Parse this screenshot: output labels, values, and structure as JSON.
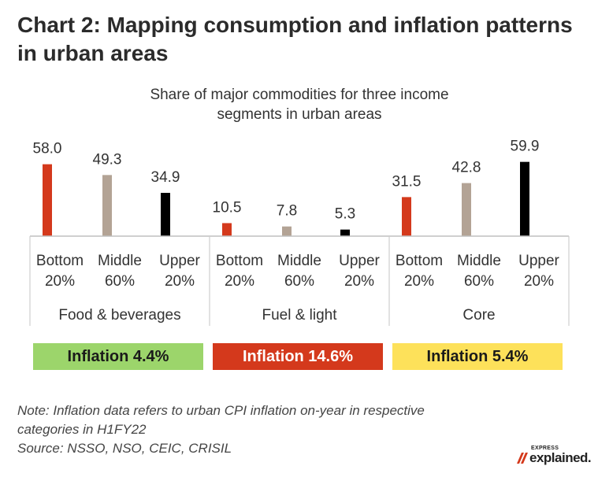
{
  "title": "Chart 2: Mapping consumption and inflation patterns in urban areas",
  "chart_data": {
    "type": "bar",
    "title": "Share of major commodities for three income segments in urban areas",
    "groups": [
      "Food & beverages",
      "Fuel & light",
      "Core"
    ],
    "segments": [
      "Bottom 20%",
      "Middle 60%",
      "Upper 20%"
    ],
    "segment_lines": [
      [
        "Bottom",
        "20%"
      ],
      [
        "Middle",
        "60%"
      ],
      [
        "Upper",
        "20%"
      ]
    ],
    "series": [
      {
        "values": [
          58.0,
          10.5,
          31.5
        ]
      },
      {
        "values": [
          49.3,
          7.8,
          42.8
        ]
      },
      {
        "values": [
          34.9,
          5.3,
          59.9
        ]
      }
    ],
    "value_labels": [
      [
        "58.0",
        "49.3",
        "34.9"
      ],
      [
        "10.5",
        "7.8",
        "5.3"
      ],
      [
        "31.5",
        "42.8",
        "59.9"
      ]
    ],
    "ylim": [
      0,
      60
    ],
    "colors": [
      "#d4391c",
      "#b3a395",
      "#000000"
    ],
    "grid": false,
    "legend": "none"
  },
  "inflation": [
    {
      "label": "Inflation 4.4%",
      "color": "#9cd56b",
      "text_color": "#1a1a1a"
    },
    {
      "label": "Inflation 14.6%",
      "color": "#d4391c",
      "text_color": "#ffffff"
    },
    {
      "label": "Inflation 5.4%",
      "color": "#fde15a",
      "text_color": "#1a1a1a"
    }
  ],
  "note_line1": "Note: Inflation data refers to urban CPI inflation on-year in respective",
  "note_line2": "categories in H1FY22",
  "source": "Source: NSSO, NSO, CEIC, CRISIL",
  "logo": {
    "small": "EXPRESS",
    "main": "explained."
  }
}
